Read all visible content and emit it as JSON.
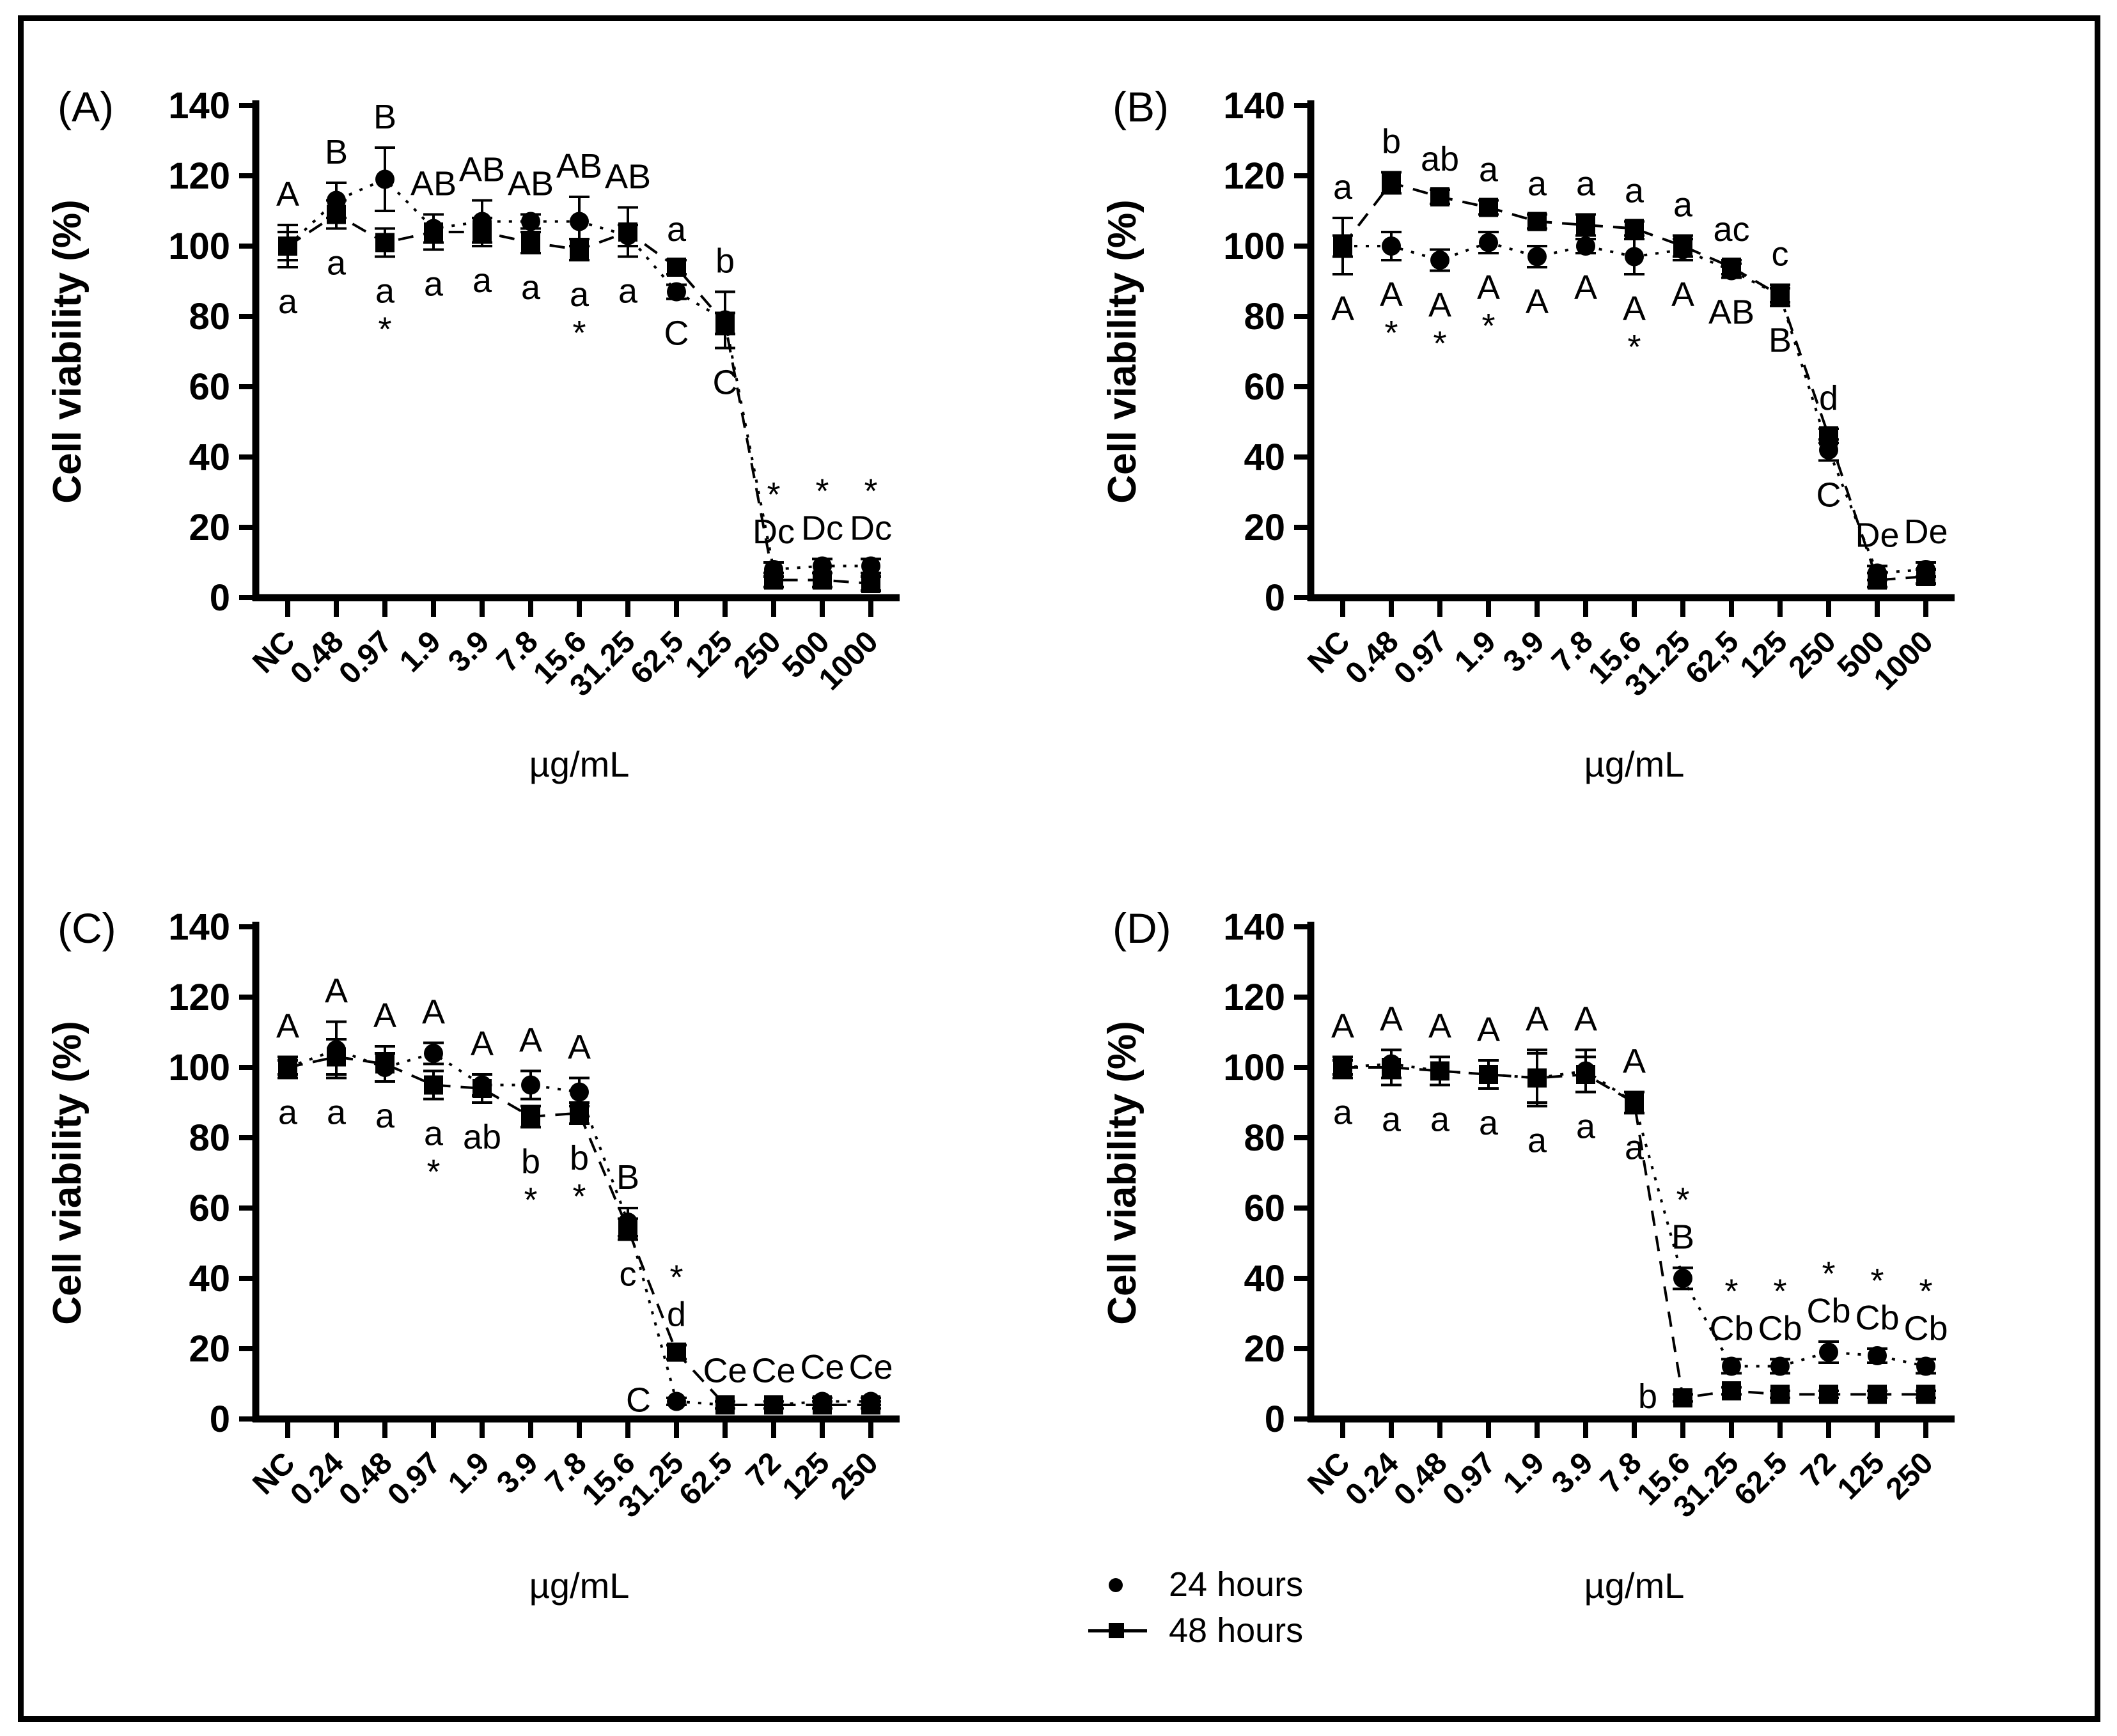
{
  "figure": {
    "background": "#ffffff",
    "ink_color": "#000000",
    "panel_labels": [
      "(A)",
      "(B)",
      "(C)",
      "(D)"
    ]
  },
  "legend": {
    "items": [
      {
        "marker": "circle",
        "label": "24 hours"
      },
      {
        "marker": "square",
        "label": "48 hours"
      }
    ]
  },
  "chart_data": [
    {
      "id": "A",
      "type": "line",
      "panel_label": "(A)",
      "xlabel": "µg/mL",
      "ylabel": "Cell viability (%)",
      "ylim": [
        0,
        140
      ],
      "yticks": [
        0,
        20,
        40,
        60,
        80,
        100,
        120,
        140
      ],
      "grid": false,
      "legend_position": "none",
      "categories": [
        "NC",
        "0.48",
        "0.97",
        "1.9",
        "3.9",
        "7.8",
        "15.6",
        "31.25",
        "62,5",
        "125",
        "250",
        "500",
        "1000"
      ],
      "series": [
        {
          "name": "24 hours",
          "marker": "circle",
          "values": [
            100,
            113,
            119,
            105,
            107,
            107,
            107,
            103,
            87,
            79,
            8,
            9,
            9
          ],
          "errors": [
            4,
            5,
            9,
            4,
            6,
            2,
            7,
            3,
            2,
            8,
            2,
            2,
            2
          ]
        },
        {
          "name": "48 hours",
          "marker": "square",
          "values": [
            100,
            109,
            101,
            104,
            104,
            101,
            99,
            104,
            94,
            78,
            5,
            5,
            4
          ],
          "errors": [
            6,
            4,
            4,
            5,
            4,
            3,
            3,
            7,
            2,
            3,
            2,
            2,
            2
          ]
        }
      ],
      "annotations_above": [
        [
          "A"
        ],
        [
          "B"
        ],
        [
          "B"
        ],
        [
          "AB"
        ],
        [
          "AB"
        ],
        [
          "AB"
        ],
        [
          "AB"
        ],
        [
          "AB"
        ],
        [
          "a"
        ],
        [
          "b"
        ],
        [
          "*",
          "Dc"
        ],
        [
          "*",
          "Dc"
        ],
        [
          "*",
          "Dc"
        ]
      ],
      "annotations_below": [
        [
          "a"
        ],
        [
          "a"
        ],
        [
          "a",
          "*"
        ],
        [
          "a"
        ],
        [
          "a"
        ],
        [
          "a"
        ],
        [
          "a",
          "*"
        ],
        [
          "a"
        ],
        [
          "C"
        ],
        [
          "C"
        ],
        [],
        [],
        []
      ]
    },
    {
      "id": "B",
      "type": "line",
      "panel_label": "(B)",
      "xlabel": "µg/mL",
      "ylabel": "Cell viability (%)",
      "ylim": [
        0,
        140
      ],
      "yticks": [
        0,
        20,
        40,
        60,
        80,
        100,
        120,
        140
      ],
      "grid": false,
      "legend_position": "none",
      "categories": [
        "NC",
        "0.48",
        "0.97",
        "1.9",
        "3.9",
        "7.8",
        "15.6",
        "31.25",
        "62,5",
        "125",
        "250",
        "500",
        "1000"
      ],
      "series": [
        {
          "name": "24 hours",
          "marker": "circle",
          "values": [
            100,
            100,
            96,
            101,
            97,
            100,
            97,
            99,
            93,
            86,
            42,
            7,
            8
          ],
          "errors": [
            3,
            4,
            3,
            3,
            3,
            2,
            5,
            3,
            2,
            2,
            3,
            2,
            2
          ]
        },
        {
          "name": "48 hours",
          "marker": "square",
          "values": [
            100,
            118,
            114,
            111,
            107,
            106,
            105,
            100,
            94,
            86,
            46,
            5,
            6
          ],
          "errors": [
            8,
            3,
            2,
            2,
            2,
            3,
            2,
            3,
            2,
            3,
            2,
            2,
            2
          ]
        }
      ],
      "annotations_above": [
        [
          "a"
        ],
        [
          "b"
        ],
        [
          "ab"
        ],
        [
          "a"
        ],
        [
          "a"
        ],
        [
          "a"
        ],
        [
          "a"
        ],
        [
          "a"
        ],
        [
          "ac"
        ],
        [
          "c"
        ],
        [
          "d"
        ],
        [
          "De"
        ],
        [
          "De"
        ]
      ],
      "annotations_below": [
        [
          "A"
        ],
        [
          "A",
          "*"
        ],
        [
          "A",
          "*"
        ],
        [
          "A",
          "*"
        ],
        [
          "A"
        ],
        [
          "A"
        ],
        [
          "A",
          "*"
        ],
        [
          "A"
        ],
        [
          "AB"
        ],
        [
          "B"
        ],
        [
          "C"
        ],
        [],
        []
      ]
    },
    {
      "id": "C",
      "type": "line",
      "panel_label": "(C)",
      "xlabel": "µg/mL",
      "ylabel": "Cell viability (%)",
      "ylim": [
        0,
        140
      ],
      "yticks": [
        0,
        20,
        40,
        60,
        80,
        100,
        120,
        140
      ],
      "grid": false,
      "legend_position": "none",
      "categories": [
        "NC",
        "0.24",
        "0.48",
        "0.97",
        "1.9",
        "3.9",
        "7.8",
        "15.6",
        "31.25",
        "62.5",
        "72",
        "125",
        "250"
      ],
      "series": [
        {
          "name": "24 hours",
          "marker": "circle",
          "values": [
            100,
            105,
            100,
            104,
            95,
            95,
            93,
            56,
            5,
            4,
            4,
            5,
            5
          ],
          "errors": [
            2,
            8,
            4,
            3,
            3,
            4,
            4,
            4,
            1,
            1,
            1,
            1,
            1
          ]
        },
        {
          "name": "48 hours",
          "marker": "square",
          "values": [
            100,
            103,
            101,
            95,
            94,
            86,
            87,
            54,
            19,
            4,
            4,
            4,
            4
          ],
          "errors": [
            3,
            5,
            5,
            4,
            4,
            3,
            3,
            3,
            2,
            1,
            1,
            1,
            1
          ]
        }
      ],
      "annotations_above": [
        [
          "A"
        ],
        [
          "A"
        ],
        [
          "A"
        ],
        [
          "A"
        ],
        [
          "A"
        ],
        [
          "A"
        ],
        [
          "A"
        ],
        [
          "B"
        ],
        [
          "*",
          "d"
        ],
        [
          "Ce"
        ],
        [
          "Ce"
        ],
        [
          "Ce"
        ],
        [
          "Ce"
        ]
      ],
      "annotations_below": [
        [
          "a"
        ],
        [
          "a"
        ],
        [
          "a"
        ],
        [
          "a",
          "*"
        ],
        [
          "ab"
        ],
        [
          "b",
          "*"
        ],
        [
          "b",
          "*"
        ],
        [
          "c"
        ],
        [
          "C"
        ],
        [],
        [],
        [],
        []
      ]
    },
    {
      "id": "D",
      "type": "line",
      "panel_label": "(D)",
      "xlabel": "µg/mL",
      "ylabel": "Cell viability (%)",
      "ylim": [
        0,
        140
      ],
      "yticks": [
        0,
        20,
        40,
        60,
        80,
        100,
        120,
        140
      ],
      "grid": false,
      "legend_position": "none",
      "categories": [
        "NC",
        "0.24",
        "0.48",
        "0.97",
        "1.9",
        "3.9",
        "7.8",
        "15.6",
        "31.25",
        "62.5",
        "72",
        "125",
        "250"
      ],
      "series": [
        {
          "name": "24 hours",
          "marker": "circle",
          "values": [
            100,
            101,
            99,
            98,
            97,
            99,
            90,
            40,
            15,
            15,
            19,
            18,
            15
          ],
          "errors": [
            3,
            4,
            4,
            4,
            7,
            6,
            3,
            3,
            2,
            2,
            3,
            2,
            2
          ]
        },
        {
          "name": "48 hours",
          "marker": "square",
          "values": [
            100,
            100,
            99,
            98,
            97,
            98,
            90,
            6,
            8,
            7,
            7,
            7,
            7
          ],
          "errors": [
            2,
            5,
            4,
            4,
            8,
            5,
            3,
            1,
            1,
            1,
            1,
            1,
            1
          ]
        }
      ],
      "annotations_above": [
        [
          "A"
        ],
        [
          "A"
        ],
        [
          "A"
        ],
        [
          "A"
        ],
        [
          "A"
        ],
        [
          "A"
        ],
        [
          "A"
        ],
        [
          "*",
          "B"
        ],
        [
          "*",
          "Cb"
        ],
        [
          "*",
          "Cb"
        ],
        [
          "*",
          "Cb"
        ],
        [
          "*",
          "Cb"
        ],
        [
          "*",
          "Cb"
        ]
      ],
      "annotations_below": [
        [
          "a"
        ],
        [
          "a"
        ],
        [
          "a"
        ],
        [
          "a"
        ],
        [
          "a"
        ],
        [
          "a"
        ],
        [
          "a"
        ],
        [
          "b"
        ],
        [],
        [],
        [],
        [],
        []
      ]
    }
  ]
}
